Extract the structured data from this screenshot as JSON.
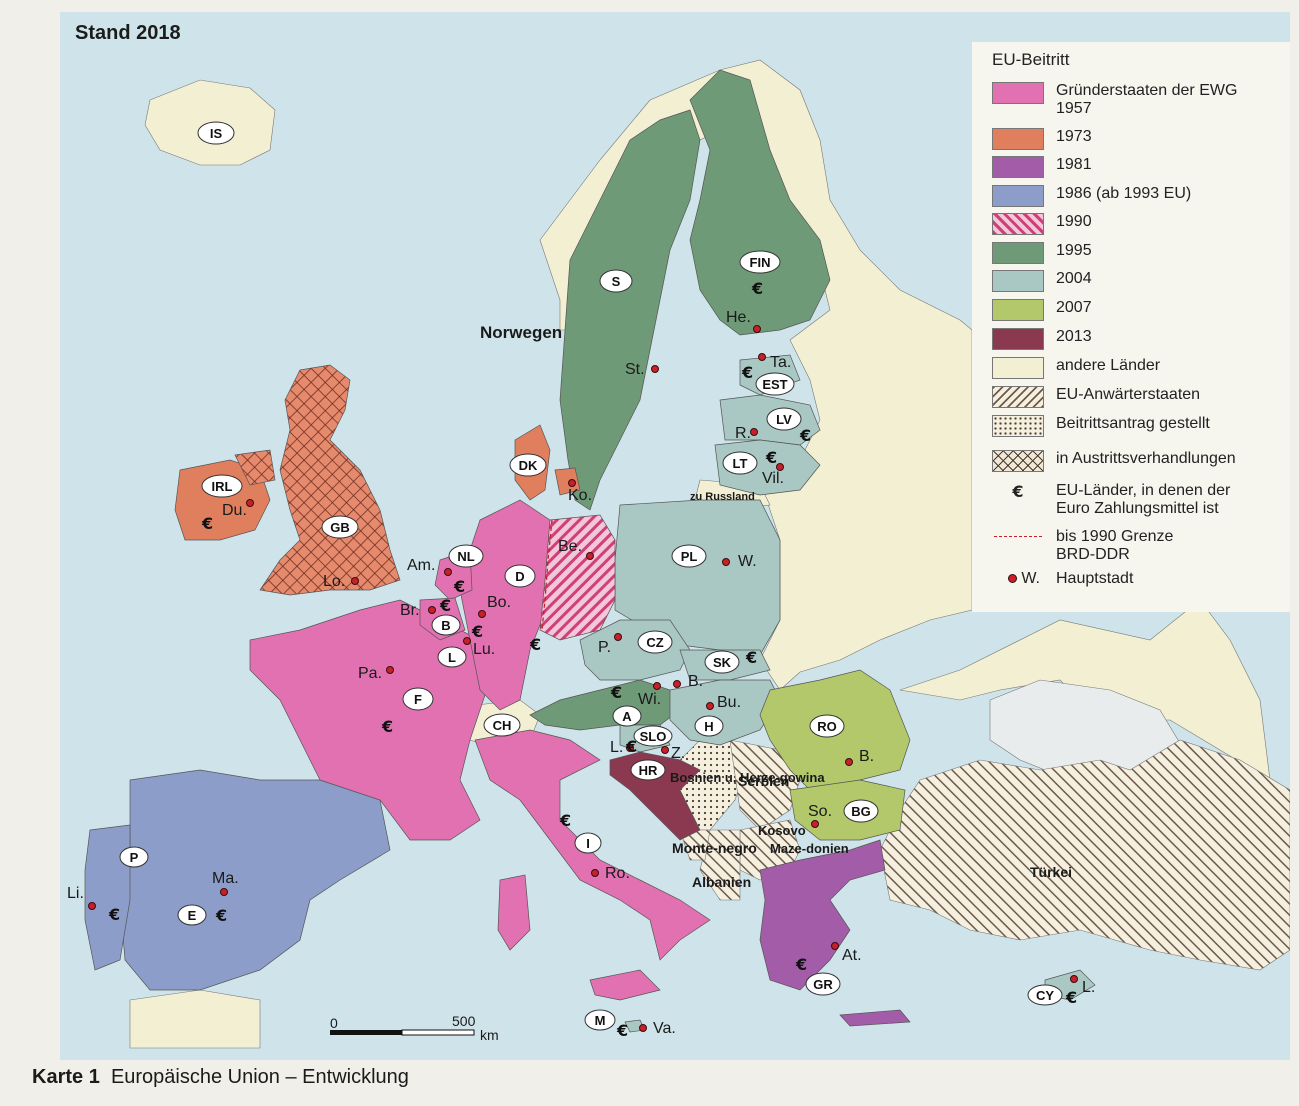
{
  "map": {
    "stand": "Stand 2018",
    "caption_number": "Karte 1",
    "caption_title": "Europäische Union – Entwicklung"
  },
  "colors": {
    "1957": "#e171b1",
    "1973": "#e07f5e",
    "1981": "#a35ca8",
    "1986": "#8c9dc9",
    "1990": "#e07fa8",
    "1995": "#6f9a78",
    "2004": "#a9c7c3",
    "2007": "#b3c86a",
    "2013": "#8b3950",
    "other": "#f3efd3",
    "sea": "#cfe4ea"
  },
  "legend": {
    "title": "EU-Beitritt",
    "items": [
      {
        "label": "Gründerstaaten der EWG 1957",
        "swatch": "1957"
      },
      {
        "label": "1973",
        "swatch": "1973"
      },
      {
        "label": "1981",
        "swatch": "1981"
      },
      {
        "label": "1986 (ab 1993 EU)",
        "swatch": "1986"
      },
      {
        "label": "1990",
        "swatch": "1990-hatch"
      },
      {
        "label": "1995",
        "swatch": "1995"
      },
      {
        "label": "2004",
        "swatch": "2004"
      },
      {
        "label": "2007",
        "swatch": "2007"
      },
      {
        "label": "2013",
        "swatch": "2013"
      },
      {
        "label": "andere Länder",
        "swatch": "other"
      },
      {
        "label": "EU-Anwärterstaaten",
        "swatch": "diag-hatch"
      },
      {
        "label": "Beitrittsantrag gestellt",
        "swatch": "dots"
      },
      {
        "label": "in Austrittsverhandlungen",
        "swatch": "cross-hatch"
      },
      {
        "label": "EU-Länder, in denen der Euro Zahlungsmittel ist",
        "symbol": "€"
      },
      {
        "label": "bis 1990 Grenze BRD-DDR",
        "symbol": "dashed-line"
      },
      {
        "label": "Hauptstadt",
        "symbol": "• W."
      }
    ]
  },
  "country_codes": [
    "IS",
    "S",
    "FIN",
    "EST",
    "LV",
    "LT",
    "DK",
    "IRL",
    "GB",
    "NL",
    "D",
    "B",
    "L",
    "F",
    "PL",
    "CZ",
    "SK",
    "A",
    "H",
    "CH",
    "SLO",
    "HR",
    "RO",
    "BG",
    "I",
    "P",
    "E",
    "GR",
    "M",
    "CY"
  ],
  "capitals": [
    "He.",
    "St.",
    "Ta.",
    "R.",
    "Vil.",
    "Ko.",
    "Du.",
    "Lo.",
    "Am.",
    "Br.",
    "Lu.",
    "Bo.",
    "Be.",
    "W.",
    "P.",
    "B.",
    "Wi.",
    "Bu.",
    "L.",
    "Z.",
    "B.",
    "So.",
    "Pa.",
    "Ro.",
    "Ma.",
    "Li.",
    "At.",
    "Va.",
    "L."
  ],
  "place_names": [
    "Norwegen",
    "zu Russland",
    "Bosnien u. Herze-gowina",
    "Serbien",
    "Monte-negro",
    "Kosovo",
    "Maze-donien",
    "Albanien",
    "Türkei"
  ],
  "scale": {
    "zero": "0",
    "value": "500",
    "unit": "km"
  }
}
